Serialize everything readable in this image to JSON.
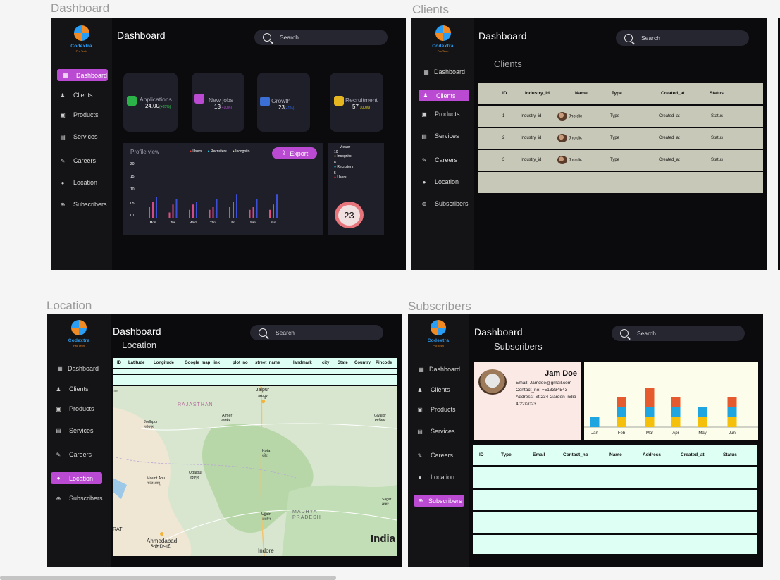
{
  "frames": {
    "dashboard": {
      "label": "Dashboard"
    },
    "clients": {
      "label": "Clients"
    },
    "location": {
      "label": "Location"
    },
    "subscribers": {
      "label": "Subscribers"
    }
  },
  "brand": {
    "name": "Codextra",
    "tagline": "Pro Tech"
  },
  "nav": [
    "Dashboard",
    "Clients",
    "Products",
    "Services",
    "Careers",
    "Location",
    "Subscribers"
  ],
  "header": {
    "title": "Dashboard",
    "search_placeholder": "Search"
  },
  "dashboard": {
    "cards": [
      {
        "label": "Applications",
        "value": "24.00",
        "pct": "(+05%)",
        "icon": "applications-icon",
        "color": "#2bb34a",
        "pct_color": "#38d44f"
      },
      {
        "label": "New jobs",
        "value": "13",
        "pct": "(+10%)",
        "icon": "new-jobs-icon",
        "color": "#b94ad1",
        "pct_color": "#b94ad1"
      },
      {
        "label": "Growth",
        "value": "23",
        "pct": "(+1%)",
        "icon": "growth-icon",
        "color": "#3b6fd6",
        "pct_color": "#2a6df4"
      },
      {
        "label": "Recruitment",
        "value": "57",
        "pct": "(100%)",
        "icon": "recruitment-icon",
        "color": "#e6b620",
        "pct_color": "#e6d820"
      }
    ],
    "profile_view": {
      "title": "Profile view",
      "legend": [
        {
          "label": "Users",
          "color": "#e53935"
        },
        {
          "label": "Recruiters",
          "color": "#26c6da"
        },
        {
          "label": "Incognito",
          "color": "#d4e157"
        }
      ],
      "export_label": "Export",
      "y_ticks": [
        "20",
        "15",
        "10",
        "05",
        "01"
      ],
      "days": [
        "Mon",
        "Tue",
        "Wed",
        "Thru",
        "Fri",
        "Satu",
        "Sun"
      ]
    },
    "viewer": {
      "title": "Viewer",
      "items": [
        {
          "value": "10",
          "label": "Incognito",
          "color": "#d4e157"
        },
        {
          "value": "8",
          "label": "Recruiters",
          "color": "#26c6da"
        },
        {
          "value": "5",
          "label": "Users",
          "color": "#e53935"
        }
      ],
      "total": "23"
    }
  },
  "clients": {
    "subtitle": "Clients",
    "columns": [
      "ID",
      "Industry_id",
      "Name",
      "Type",
      "Created_at",
      "Status"
    ],
    "rows": [
      {
        "id": "1",
        "industry": "Industry_id",
        "name": "Jho dic",
        "type": "Type",
        "created": "Created_at",
        "status": "Status"
      },
      {
        "id": "2",
        "industry": "Industry_id",
        "name": "Jho dic",
        "type": "Type",
        "created": "Created_at",
        "status": "Status"
      },
      {
        "id": "3",
        "industry": "Industry_id",
        "name": "Jho dic",
        "type": "Type",
        "created": "Created_at",
        "status": "Status"
      }
    ]
  },
  "location": {
    "subtitle": "Location",
    "columns": [
      "ID",
      "Latitude",
      "Longitude",
      "Google_map_link",
      "plot_no",
      "street_name",
      "landmark",
      "city",
      "State",
      "Country",
      "Pincode"
    ],
    "map_labels": {
      "rajasthan": "RAJASTHAN",
      "jaipur": "Jaipur",
      "jaipur_local": "जयपुर",
      "jodhpur": "Jodhpur",
      "jodhpur_local": "जोधपुर",
      "ajmer": "Ajmer",
      "ajmer_local": "अजमेर",
      "gwalior": "Gwalior",
      "gwalior_local": "ग्वालियर",
      "kota": "Kota",
      "kota_local": "कोटा",
      "mount_abu": "Mount Abu",
      "mount_abu_local": "माउंट आबू",
      "udaipur": "Udaipur",
      "udaipur_local": "उदयपुर",
      "sagar": "Sagar",
      "sagar_local": "सागर",
      "madhya_pradesh": "MADHYA PRADESH",
      "ujjain": "Ujjain",
      "ujjain_local": "उज्जैन",
      "ahmedabad": "Ahmedabad",
      "ahmedabad_local": "અમદાવાદ",
      "indore": "Indore",
      "india": "India",
      "edge_top": "mer",
      "edge_bottom": "RAT"
    }
  },
  "subscribers": {
    "subtitle": "Subscribers",
    "profile": {
      "name": "Jam Doe",
      "email": "Email: Jamdoe@gmail.com",
      "contact": "Contact_no: +513334543",
      "address": "Address:  St.234 Garden India",
      "date": "4/22/2023"
    },
    "columns": [
      "ID",
      "Type",
      "Email",
      "Contact_no",
      "Name",
      "Address",
      "Created_at",
      "Status"
    ]
  },
  "chart_data": [
    {
      "type": "bar",
      "title": "Profile view",
      "categories": [
        "Mon",
        "Tue",
        "Wed",
        "Thru",
        "Fri",
        "Satu",
        "Sun"
      ],
      "ylim": [
        0,
        20
      ],
      "y_ticks": [
        "20",
        "15",
        "10",
        "05",
        "01"
      ],
      "series": [
        {
          "name": "Users",
          "color": "#e0507a",
          "values": [
            4,
            2,
            3,
            3,
            4,
            3,
            3
          ]
        },
        {
          "name": "Recruiters",
          "color": "#d14a8a",
          "values": [
            6,
            5,
            5,
            4,
            6,
            4,
            5
          ]
        },
        {
          "name": "Incognito",
          "color": "#3b50d6",
          "values": [
            8,
            7,
            6,
            7,
            9,
            7,
            9
          ]
        }
      ],
      "grid": false,
      "legend": "top"
    },
    {
      "type": "bar",
      "stacked": true,
      "categories": [
        "Jan",
        "Feb",
        "Mar",
        "Apr",
        "May",
        "Jun"
      ],
      "series": [
        {
          "color": "#f5c00b",
          "values": [
            0,
            1,
            1,
            1,
            1,
            1
          ]
        },
        {
          "color": "#1fa5e0",
          "values": [
            1,
            1,
            1,
            1,
            1,
            1
          ]
        },
        {
          "color": "#e55a2e",
          "values": [
            0,
            1,
            2,
            1,
            0,
            1
          ]
        }
      ],
      "grid": false
    }
  ]
}
